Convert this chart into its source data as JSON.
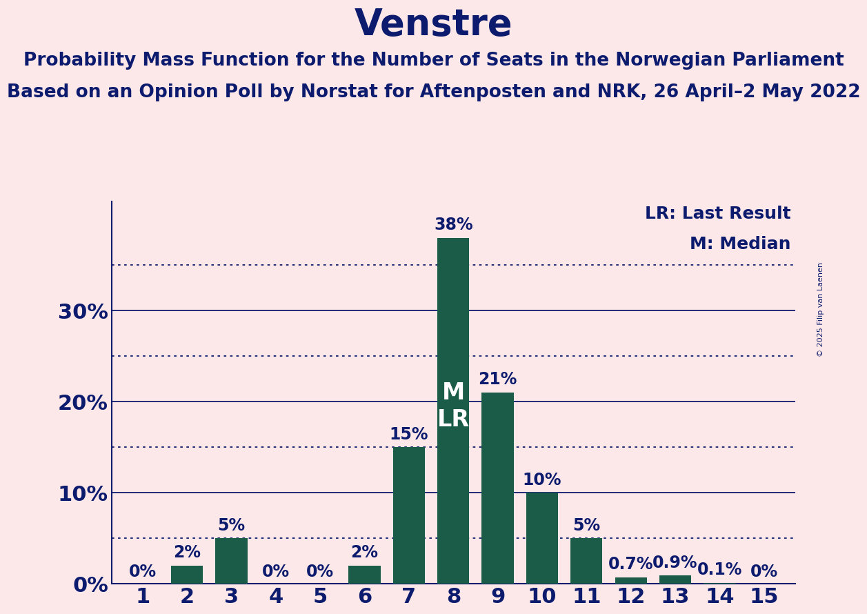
{
  "title": "Venstre",
  "subtitle1": "Probability Mass Function for the Number of Seats in the Norwegian Parliament",
  "subtitle2": "Based on an Opinion Poll by Norstat for Aftenposten and NRK, 26 April–2 May 2022",
  "copyright": "© 2025 Filip van Laenen",
  "categories": [
    1,
    2,
    3,
    4,
    5,
    6,
    7,
    8,
    9,
    10,
    11,
    12,
    13,
    14,
    15
  ],
  "values": [
    0.0,
    2.0,
    5.0,
    0.0,
    0.0,
    2.0,
    15.0,
    38.0,
    21.0,
    10.0,
    5.0,
    0.7,
    0.9,
    0.1,
    0.0
  ],
  "labels": [
    "0%",
    "2%",
    "5%",
    "0%",
    "0%",
    "2%",
    "15%",
    "38%",
    "21%",
    "10%",
    "5%",
    "0.7%",
    "0.9%",
    "0.1%",
    "0%"
  ],
  "bar_color": "#1a5c48",
  "background_color": "#fce8e8",
  "text_color": "#0d1b6e",
  "title_fontsize": 38,
  "subtitle_fontsize": 19,
  "label_fontsize": 17,
  "tick_fontsize": 22,
  "ytick_values": [
    0,
    10,
    20,
    30
  ],
  "dotted_lines": [
    5,
    15,
    25,
    35
  ],
  "ylim": [
    0,
    42
  ],
  "median_bar_index": 7,
  "legend_lr": "LR: Last Result",
  "legend_m": "M: Median"
}
